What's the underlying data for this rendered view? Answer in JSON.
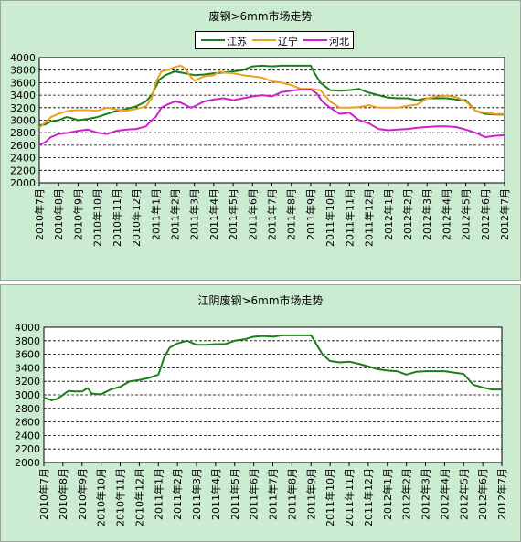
{
  "colors": {
    "panel_bg": "#ccecd2",
    "plot_bg": "#ffffff",
    "grid": "#000000",
    "jiangsu": "#1a7f1a",
    "liaoning": "#f0a020",
    "hebei": "#cc22cc",
    "jiangyin": "#1a7f1a"
  },
  "chart_data": [
    {
      "type": "line",
      "title": "废钢>6mm市场走势",
      "legend": [
        "江苏",
        "辽宁",
        "河北"
      ],
      "legend_position": "top-center",
      "grid": true,
      "ylim": [
        2000,
        4000
      ],
      "yticks": [
        "4000",
        "3800",
        "3600",
        "3400",
        "3200",
        "3000",
        "2800",
        "2600",
        "2400",
        "2200",
        "2000"
      ],
      "categories": [
        "2010年7月",
        "2010年8月",
        "2010年9月",
        "2010年10月",
        "2010年11月",
        "2010年12月",
        "2011年1月",
        "2011年2月",
        "2011年3月",
        "2011年4月",
        "2011年5月",
        "2011年6月",
        "2011年7月",
        "2011年8月",
        "2011年9月",
        "2011年10月",
        "2011年11月",
        "2011年12月",
        "2012年1月",
        "2012年2月",
        "2012年3月",
        "2012年4月",
        "2012年5月",
        "2012年6月",
        "2012年7月"
      ],
      "series": [
        {
          "name": "江苏",
          "color": "#1a7f1a",
          "x": [
            0,
            0.3,
            0.6,
            1.0,
            1.4,
            1.6,
            2.0,
            2.5,
            3.0,
            3.5,
            4.0,
            4.5,
            5.0,
            5.5,
            5.8,
            6.0,
            6.2,
            6.5,
            7.0,
            7.5,
            8.0,
            8.5,
            9.0,
            9.5,
            10.0,
            10.5,
            11.0,
            11.5,
            12.0,
            12.5,
            13.0,
            13.5,
            14.0,
            14.2,
            14.5,
            15.0,
            15.5,
            16.0,
            16.5,
            17.0,
            17.5,
            18.0,
            18.5,
            19.0,
            19.5,
            20.0,
            20.5,
            21.0,
            21.5,
            22.0,
            22.5,
            23.0,
            23.5,
            24.0
          ],
          "values": [
            2920,
            2930,
            2980,
            3000,
            3050,
            3040,
            3000,
            3020,
            3050,
            3100,
            3150,
            3180,
            3220,
            3300,
            3400,
            3530,
            3650,
            3720,
            3780,
            3750,
            3720,
            3730,
            3750,
            3760,
            3780,
            3800,
            3860,
            3870,
            3860,
            3870,
            3870,
            3870,
            3870,
            3750,
            3600,
            3480,
            3470,
            3480,
            3500,
            3440,
            3400,
            3360,
            3350,
            3350,
            3320,
            3350,
            3350,
            3350,
            3330,
            3320,
            3150,
            3100,
            3090,
            3090
          ]
        },
        {
          "name": "辽宁",
          "color": "#f0a020",
          "x": [
            0,
            0.3,
            0.6,
            1.0,
            1.5,
            2.0,
            2.5,
            3.0,
            3.5,
            4.0,
            4.5,
            5.0,
            5.5,
            5.8,
            6.0,
            6.3,
            6.6,
            7.0,
            7.3,
            7.5,
            7.8,
            8.0,
            8.5,
            9.0,
            9.3,
            9.5,
            10.0,
            10.5,
            11.0,
            11.5,
            12.0,
            12.5,
            13.0,
            13.5,
            14.0,
            14.5,
            15.0,
            15.5,
            16.0,
            16.5,
            17.0,
            17.5,
            18.0,
            18.5,
            19.0,
            19.5,
            20.0,
            20.5,
            21.0,
            21.5,
            22.0,
            22.5,
            23.0,
            23.5,
            24.0
          ],
          "values": [
            2880,
            2960,
            3050,
            3100,
            3150,
            3160,
            3160,
            3150,
            3200,
            3170,
            3150,
            3180,
            3220,
            3350,
            3600,
            3780,
            3800,
            3850,
            3870,
            3830,
            3700,
            3630,
            3700,
            3720,
            3780,
            3760,
            3750,
            3720,
            3700,
            3680,
            3620,
            3600,
            3560,
            3500,
            3500,
            3480,
            3300,
            3200,
            3200,
            3210,
            3240,
            3200,
            3200,
            3200,
            3230,
            3250,
            3350,
            3380,
            3390,
            3370,
            3300,
            3150,
            3120,
            3100,
            3100
          ]
        },
        {
          "name": "河北",
          "color": "#cc22cc",
          "x": [
            0,
            0.3,
            0.6,
            1.0,
            1.5,
            2.0,
            2.5,
            3.0,
            3.5,
            4.0,
            4.5,
            5.0,
            5.5,
            5.8,
            6.0,
            6.3,
            6.6,
            7.0,
            7.3,
            7.5,
            7.8,
            8.0,
            8.5,
            9.0,
            9.5,
            10.0,
            10.5,
            11.0,
            11.5,
            12.0,
            12.5,
            13.0,
            13.5,
            14.0,
            14.3,
            14.6,
            15.0,
            15.5,
            16.0,
            16.5,
            17.0,
            17.5,
            18.0,
            18.5,
            19.0,
            19.5,
            20.0,
            20.5,
            21.0,
            21.5,
            22.0,
            22.5,
            23.0,
            23.5,
            24.0
          ],
          "values": [
            2600,
            2650,
            2730,
            2780,
            2800,
            2830,
            2850,
            2800,
            2780,
            2830,
            2850,
            2860,
            2900,
            3000,
            3050,
            3200,
            3250,
            3300,
            3280,
            3250,
            3200,
            3220,
            3300,
            3330,
            3350,
            3320,
            3350,
            3380,
            3400,
            3380,
            3450,
            3470,
            3490,
            3490,
            3430,
            3300,
            3200,
            3100,
            3120,
            3000,
            2950,
            2860,
            2840,
            2850,
            2860,
            2880,
            2890,
            2900,
            2900,
            2890,
            2850,
            2800,
            2730,
            2750,
            2760
          ]
        }
      ]
    },
    {
      "type": "line",
      "title": "江阴废钢>6mm市场走势",
      "grid": true,
      "ylim": [
        2000,
        4000
      ],
      "yticks": [
        "4000",
        "3800",
        "3600",
        "3400",
        "3200",
        "3000",
        "2800",
        "2600",
        "2400",
        "2200",
        "2000"
      ],
      "categories": [
        "2010年7月",
        "2010年8月",
        "2010年9月",
        "2010年10月",
        "2010年11月",
        "2010年12月",
        "2011年1月",
        "2011年2月",
        "2011年3月",
        "2011年4月",
        "2011年5月",
        "2011年6月",
        "2011年7月",
        "2011年8月",
        "2011年9月",
        "2011年10月",
        "2011年11月",
        "2011年12月",
        "2012年1月",
        "2012年2月",
        "2012年3月",
        "2012年4月",
        "2012年5月",
        "2012年6月",
        "2012年7月"
      ],
      "series": [
        {
          "color": "#1a7f1a",
          "x": [
            0,
            0.4,
            0.7,
            1.0,
            1.3,
            1.6,
            2.0,
            2.3,
            2.5,
            2.8,
            3.0,
            3.5,
            4.0,
            4.5,
            5.0,
            5.5,
            6.0,
            6.3,
            6.6,
            7.0,
            7.5,
            8.0,
            8.5,
            9.0,
            9.5,
            10.0,
            10.5,
            11.0,
            11.5,
            12.0,
            12.5,
            13.0,
            13.5,
            14.0,
            14.3,
            14.6,
            15.0,
            15.5,
            16.0,
            16.5,
            17.0,
            17.5,
            18.0,
            18.5,
            19.0,
            19.5,
            20.0,
            20.5,
            21.0,
            21.5,
            22.0,
            22.5,
            23.0,
            23.5,
            24.0
          ],
          "values": [
            2960,
            2920,
            2940,
            3000,
            3060,
            3050,
            3050,
            3100,
            3020,
            3010,
            3010,
            3080,
            3120,
            3200,
            3220,
            3250,
            3300,
            3550,
            3700,
            3760,
            3800,
            3740,
            3740,
            3750,
            3750,
            3800,
            3820,
            3860,
            3870,
            3860,
            3880,
            3880,
            3880,
            3880,
            3740,
            3600,
            3500,
            3480,
            3490,
            3460,
            3420,
            3380,
            3360,
            3350,
            3300,
            3340,
            3350,
            3350,
            3350,
            3330,
            3310,
            3150,
            3110,
            3080,
            3080
          ]
        }
      ]
    }
  ]
}
